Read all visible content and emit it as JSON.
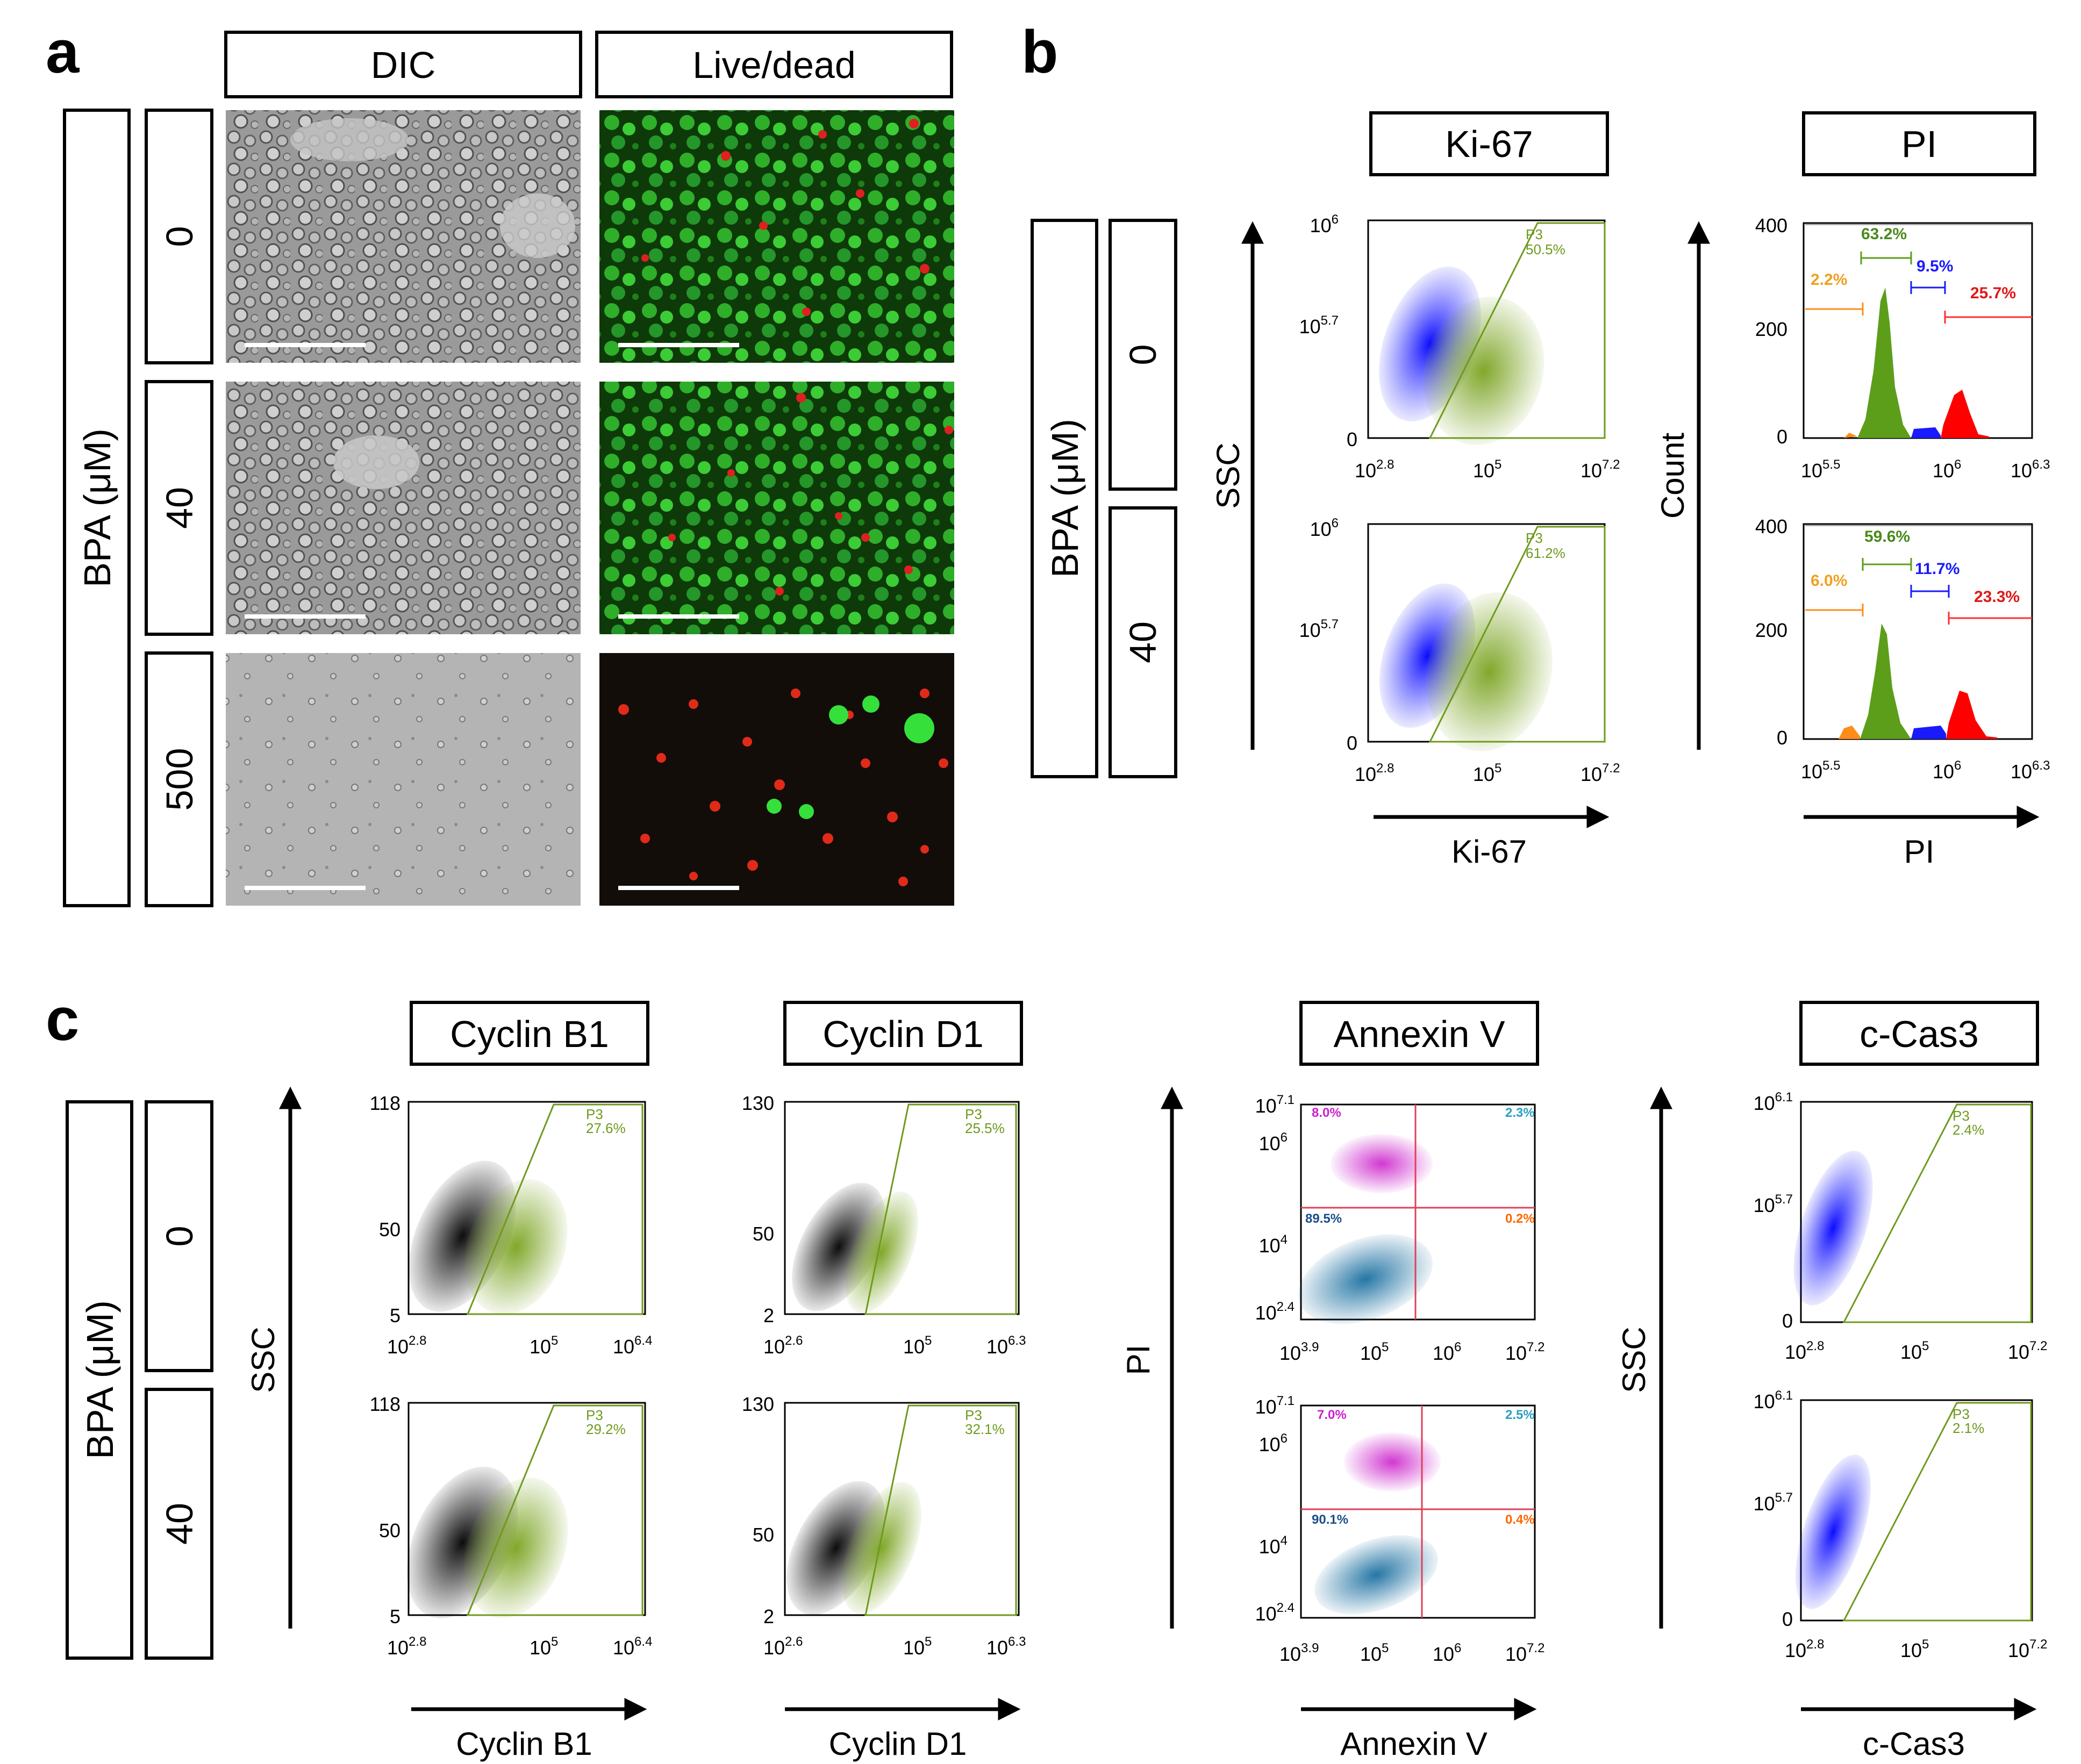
{
  "panels": {
    "a": "a",
    "b": "b",
    "c": "c"
  },
  "a": {
    "headers": [
      "DIC",
      "Live/dead"
    ],
    "row_label": "BPA (μM)",
    "rows": [
      "0",
      "40",
      "500"
    ]
  },
  "b": {
    "headers": [
      "Ki-67",
      "PI"
    ],
    "row_label": "BPA (μM)",
    "rows": [
      "0",
      "40"
    ],
    "scatter": {
      "ylabel": "SSC",
      "xlabel": "Ki-67",
      "yticks": [
        "10^6",
        "10^5.7",
        "0"
      ],
      "xticks": [
        "10^2.8",
        "10^5",
        "10^7.2"
      ],
      "gate_name": "P3",
      "gate_pct": [
        "50.5%",
        "61.2%"
      ],
      "colors": {
        "negative": "#1a1aff",
        "positive": "#7aa320",
        "gate": "#6f9a1e"
      }
    },
    "hist": {
      "ylabel": "Count",
      "xlabel": "PI",
      "yticks": [
        "400",
        "200",
        "0"
      ],
      "xticks": [
        "10^5.5",
        "10^6",
        "10^6.3"
      ],
      "series_colors": {
        "subG1": "#ff8c1a",
        "G1": "#5c9e1a",
        "S": "#1a1aff",
        "G2M": "#ff0000"
      },
      "rows": [
        {
          "subG1": "2.2%",
          "G1": "63.2%",
          "S": "9.5%",
          "G2M": "25.7%"
        },
        {
          "subG1": "6.0%",
          "G1": "59.6%",
          "S": "11.7%",
          "G2M": "23.3%"
        }
      ]
    }
  },
  "c": {
    "row_label": "BPA (μM)",
    "rows": [
      "0",
      "40"
    ],
    "ylabel_ssc": "SSC",
    "ylabel_pi": "PI",
    "cyclinB1": {
      "header": "Cyclin B1",
      "xlabel": "Cyclin B1",
      "yticks": [
        "118",
        "50",
        "5"
      ],
      "xticks": [
        "10^2.8",
        "10^5",
        "10^6.4"
      ],
      "gate_name": "P3",
      "gate_pct": [
        "27.6%",
        "29.2%"
      ]
    },
    "cyclinD1": {
      "header": "Cyclin D1",
      "xlabel": "Cyclin D1",
      "yticks": [
        "130",
        "50",
        "2"
      ],
      "xticks": [
        "10^2.6",
        "10^5",
        "10^6.3"
      ],
      "gate_name": "P3",
      "gate_pct": [
        "25.5%",
        "32.1%"
      ]
    },
    "annexin": {
      "header": "Annexin V",
      "xlabel": "Annexin V",
      "yticks": [
        "10^7.1",
        "10^6",
        "10^4",
        "10^2.4"
      ],
      "xticks": [
        "10^3.9",
        "10^5",
        "10^6",
        "10^7.2"
      ],
      "quadrants": [
        {
          "UL": "8.0%",
          "UR": "2.3%",
          "LL": "89.5%",
          "LR": "0.2%"
        },
        {
          "UL": "7.0%",
          "UR": "2.5%",
          "LL": "90.1%",
          "LR": "0.4%"
        }
      ],
      "colors": {
        "UL": "#cc22cc",
        "UR": "#2aa0c0",
        "LL": "#1b4f8a",
        "LR": "#ff6600"
      }
    },
    "ccas3": {
      "header": "c-Cas3",
      "xlabel": "c-Cas3",
      "yticks": [
        "10^6.1",
        "10^5.7",
        "0"
      ],
      "xticks": [
        "10^2.8",
        "10^5",
        "10^7.2"
      ],
      "gate_name": "P3",
      "gate_pct": [
        "2.4%",
        "2.1%"
      ]
    }
  }
}
